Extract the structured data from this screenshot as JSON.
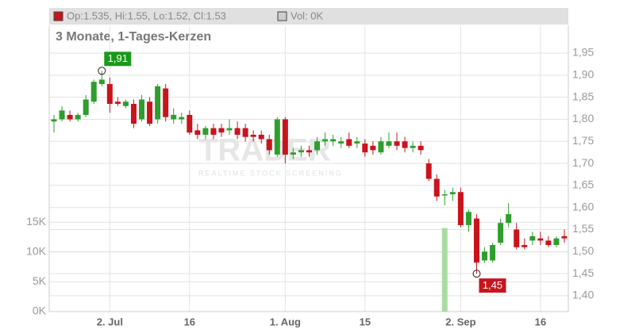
{
  "chart_data": {
    "type": "candlestick",
    "header": {
      "ohlc": "Op:1.535, Hi:1.55, Lo:1.52, Cl:1.53",
      "volume": "Vol: 0K"
    },
    "subtitle": "3 Monate, 1-Tages-Kerzen",
    "watermark": {
      "brand": "TRADER",
      "tagline": "REALTIME STOCK SCREENING"
    },
    "categories": [
      null,
      null,
      null,
      null,
      null,
      null,
      null,
      "2. Jul",
      null,
      null,
      null,
      null,
      null,
      null,
      null,
      null,
      null,
      "16",
      null,
      null,
      null,
      null,
      null,
      null,
      null,
      null,
      null,
      null,
      null,
      "1. Aug",
      null,
      null,
      null,
      null,
      null,
      null,
      null,
      null,
      null,
      "15",
      null,
      null,
      null,
      null,
      null,
      null,
      null,
      null,
      null,
      null,
      null,
      "2. Sep",
      null,
      null,
      null,
      null,
      null,
      null,
      null,
      null,
      null,
      "16",
      null,
      null,
      null
    ],
    "open": [
      1.795,
      1.8,
      1.81,
      1.8,
      1.81,
      1.84,
      1.88,
      1.88,
      1.84,
      1.83,
      1.835,
      1.8,
      1.84,
      1.8,
      1.87,
      1.8,
      1.8,
      1.81,
      1.775,
      1.765,
      1.78,
      1.78,
      1.775,
      1.78,
      1.78,
      1.765,
      1.765,
      1.755,
      1.72,
      1.8,
      1.72,
      1.725,
      1.73,
      1.73,
      1.75,
      1.75,
      1.745,
      1.755,
      1.745,
      1.745,
      1.74,
      1.725,
      1.74,
      1.75,
      1.75,
      1.735,
      1.74,
      1.7,
      1.665,
      1.628,
      1.63,
      1.635,
      1.56,
      1.575,
      1.48,
      1.48,
      1.52,
      1.565,
      1.55,
      1.515,
      1.525,
      1.53,
      1.525,
      1.515,
      1.535
    ],
    "high": [
      1.81,
      1.83,
      1.82,
      1.815,
      1.855,
      1.89,
      1.91,
      1.895,
      1.85,
      1.845,
      1.845,
      1.855,
      1.85,
      1.88,
      1.88,
      1.825,
      1.815,
      1.82,
      1.79,
      1.785,
      1.79,
      1.79,
      1.8,
      1.795,
      1.79,
      1.775,
      1.775,
      1.765,
      1.805,
      1.805,
      1.735,
      1.74,
      1.74,
      1.76,
      1.77,
      1.765,
      1.76,
      1.77,
      1.76,
      1.755,
      1.75,
      1.76,
      1.77,
      1.77,
      1.76,
      1.75,
      1.75,
      1.71,
      1.675,
      1.64,
      1.645,
      1.645,
      1.595,
      1.585,
      1.51,
      1.52,
      1.575,
      1.61,
      1.565,
      1.53,
      1.545,
      1.545,
      1.535,
      1.535,
      1.55
    ],
    "low": [
      1.77,
      1.795,
      1.795,
      1.795,
      1.805,
      1.835,
      1.875,
      1.815,
      1.83,
      1.825,
      1.78,
      1.795,
      1.785,
      1.79,
      1.795,
      1.79,
      1.79,
      1.765,
      1.755,
      1.755,
      1.755,
      1.76,
      1.765,
      1.755,
      1.75,
      1.75,
      1.745,
      1.72,
      1.715,
      1.7,
      1.71,
      1.715,
      1.715,
      1.72,
      1.74,
      1.74,
      1.735,
      1.735,
      1.735,
      1.715,
      1.72,
      1.72,
      1.735,
      1.73,
      1.725,
      1.725,
      1.72,
      1.66,
      1.615,
      1.605,
      1.615,
      1.555,
      1.545,
      1.45,
      1.475,
      1.475,
      1.515,
      1.555,
      1.505,
      1.505,
      1.515,
      1.515,
      1.51,
      1.51,
      1.52
    ],
    "close": [
      1.8,
      1.82,
      1.8,
      1.81,
      1.845,
      1.885,
      1.89,
      1.835,
      1.835,
      1.84,
      1.79,
      1.845,
      1.79,
      1.875,
      1.805,
      1.81,
      1.805,
      1.77,
      1.765,
      1.78,
      1.765,
      1.77,
      1.78,
      1.765,
      1.76,
      1.76,
      1.755,
      1.73,
      1.8,
      1.72,
      1.725,
      1.73,
      1.725,
      1.75,
      1.755,
      1.755,
      1.75,
      1.74,
      1.75,
      1.725,
      1.73,
      1.75,
      1.75,
      1.74,
      1.735,
      1.74,
      1.73,
      1.665,
      1.625,
      1.63,
      1.635,
      1.56,
      1.59,
      1.475,
      1.5,
      1.515,
      1.565,
      1.585,
      1.51,
      1.51,
      1.535,
      1.525,
      1.515,
      1.53,
      1.53
    ],
    "volume": [
      0,
      0,
      0,
      0,
      0,
      0,
      0,
      0,
      0,
      0,
      0,
      0,
      0,
      0,
      0,
      0,
      0,
      0,
      0,
      0,
      0,
      0,
      0,
      0,
      0,
      0,
      0,
      0,
      0,
      0,
      0,
      0,
      0,
      0,
      0,
      0,
      0,
      0,
      0,
      0,
      0,
      0,
      0,
      0,
      0,
      0,
      0,
      0,
      0,
      14000,
      0,
      0,
      0,
      0,
      0,
      0,
      0,
      0,
      0,
      0,
      0,
      0,
      0,
      0,
      0
    ],
    "up_color": "#2f9e2f",
    "down_color": "#c8141c",
    "volume_color": "#a8dca0",
    "ylim": [
      1.364,
      2.013
    ],
    "yticks": [
      {
        "value": 1.4,
        "label": "1,40"
      },
      {
        "value": 1.45,
        "label": "1,45"
      },
      {
        "value": 1.5,
        "label": "1,50"
      },
      {
        "value": 1.55,
        "label": "1,55"
      },
      {
        "value": 1.6,
        "label": "1,60"
      },
      {
        "value": 1.65,
        "label": "1,65"
      },
      {
        "value": 1.7,
        "label": "1,70"
      },
      {
        "value": 1.75,
        "label": "1,75"
      },
      {
        "value": 1.8,
        "label": "1,80"
      },
      {
        "value": 1.85,
        "label": "1,85"
      },
      {
        "value": 1.9,
        "label": "1,90"
      },
      {
        "value": 1.95,
        "label": "1,95"
      }
    ],
    "y2lim": [
      0,
      48000
    ],
    "y2ticks": [
      {
        "value": 0,
        "label": "0K"
      },
      {
        "value": 5000,
        "label": "5K"
      },
      {
        "value": 10000,
        "label": "10K"
      },
      {
        "value": 15000,
        "label": "15K"
      }
    ],
    "annotations": [
      {
        "label": "1,91",
        "value": 1.91,
        "color": "#1a9a1a"
      },
      {
        "label": "1,45",
        "value": 1.45,
        "color": "#c8141c"
      }
    ],
    "grid": true
  }
}
